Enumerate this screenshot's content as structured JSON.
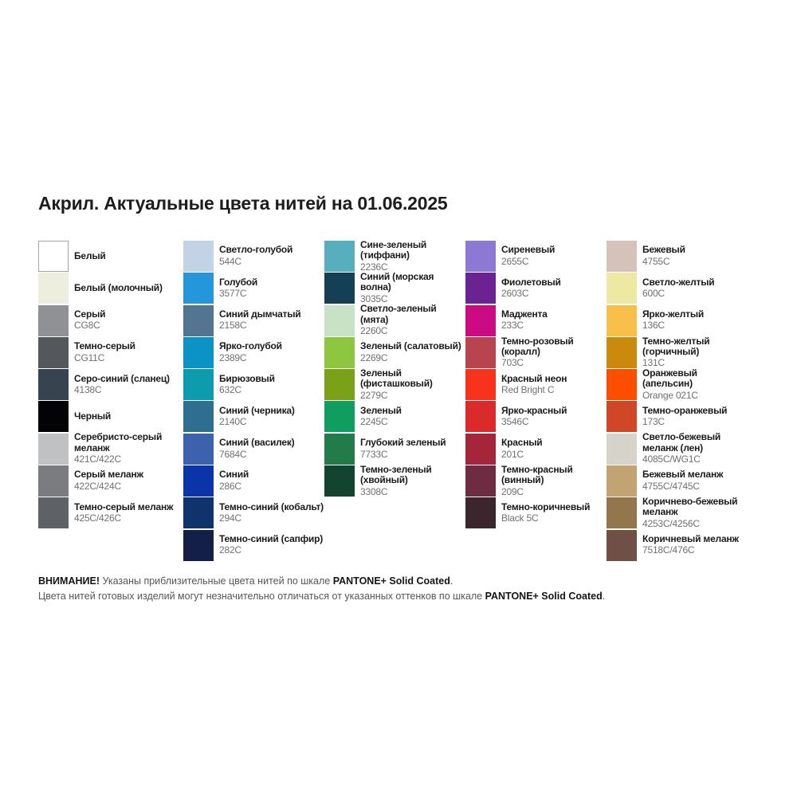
{
  "title": "Акрил. Актуальные цвета нитей на 01.06.2025",
  "columns": [
    {
      "items": [
        {
          "name": "Белый",
          "code": "",
          "hex": "#ffffff",
          "border": true
        },
        {
          "name": "Белый (молочный)",
          "code": "",
          "hex": "#edeedd"
        },
        {
          "name": "Серый",
          "code": "CG8C",
          "hex": "#8f9194"
        },
        {
          "name": "Темно-серый",
          "code": "CG11C",
          "hex": "#54575c"
        },
        {
          "name": "Серо-синий (сланец)",
          "code": "4138C",
          "hex": "#37434f"
        },
        {
          "name": "Черный",
          "code": "",
          "hex": "#030305"
        },
        {
          "name": "Серебристо-серый меланж",
          "code": "421C/422C",
          "hex": "#c0c1c3"
        },
        {
          "name": "Серый меланж",
          "code": "422C/424C",
          "hex": "#7a7c7f"
        },
        {
          "name": "Темно-серый меланж",
          "code": "425C/426C",
          "hex": "#5e6165"
        }
      ]
    },
    {
      "items": [
        {
          "name": "Светло-голубой",
          "code": "544C",
          "hex": "#c3d3e6"
        },
        {
          "name": "Голубой",
          "code": "3577C",
          "hex": "#2496d9"
        },
        {
          "name": "Синий дымчатый",
          "code": "2158C",
          "hex": "#53758f"
        },
        {
          "name": "Ярко-голубой",
          "code": "2389C",
          "hex": "#0b93c6"
        },
        {
          "name": "Бирюзовый",
          "code": "632C",
          "hex": "#0d9bae"
        },
        {
          "name": "Синий (черника)",
          "code": "2140C",
          "hex": "#2e6e8e"
        },
        {
          "name": "Синий (василек)",
          "code": "7684C",
          "hex": "#3c62ae"
        },
        {
          "name": "Синий",
          "code": "286C",
          "hex": "#0b34a9"
        },
        {
          "name": "Темно-синий (кобальт)",
          "code": "294C",
          "hex": "#11336c"
        },
        {
          "name": "Темно-синий (сапфир)",
          "code": "282C",
          "hex": "#141f47"
        }
      ]
    },
    {
      "items": [
        {
          "name": "Сине-зеленый (тиффани)",
          "code": "2236C",
          "hex": "#57afbd"
        },
        {
          "name": "Синий (морская волна)",
          "code": "3035C",
          "hex": "#143f55"
        },
        {
          "name": "Светло-зеленый (мята)",
          "code": "2260C",
          "hex": "#c8e2c6"
        },
        {
          "name": "Зеленый (салатовый)",
          "code": "2269C",
          "hex": "#8ec63f"
        },
        {
          "name": "Зеленый (фисташковый)",
          "code": "2279C",
          "hex": "#7aa118"
        },
        {
          "name": "Зеленый",
          "code": "2245C",
          "hex": "#0f9e5f"
        },
        {
          "name": "Глубокий зеленый",
          "code": "7733C",
          "hex": "#237b4a"
        },
        {
          "name": "Темно-зеленый (хвойный)",
          "code": "3308C",
          "hex": "#134430"
        }
      ]
    },
    {
      "items": [
        {
          "name": "Сиреневый",
          "code": "2655C",
          "hex": "#8d79d3"
        },
        {
          "name": "Фиолетовый",
          "code": "2603C",
          "hex": "#6a2391"
        },
        {
          "name": "Маджента",
          "code": "233C",
          "hex": "#cc0a84"
        },
        {
          "name": "Темно-розовый (коралл)",
          "code": "703C",
          "hex": "#b7444f"
        },
        {
          "name": "Красный неон",
          "code": "Red Bright C",
          "hex": "#f7331e"
        },
        {
          "name": "Ярко-красный",
          "code": "3546C",
          "hex": "#da2a29"
        },
        {
          "name": "Красный",
          "code": "201C",
          "hex": "#a5253a"
        },
        {
          "name": "Темно-красный (винный)",
          "code": "209C",
          "hex": "#6f2b42"
        },
        {
          "name": "Темно-коричневый",
          "code": "Black 5C",
          "hex": "#3c262d"
        }
      ]
    },
    {
      "items": [
        {
          "name": "Бежевый",
          "code": "4755C",
          "hex": "#d5c2ba"
        },
        {
          "name": "Светло-желтый",
          "code": "600C",
          "hex": "#ede8a2"
        },
        {
          "name": "Ярко-желтый",
          "code": "136C",
          "hex": "#f8c04b"
        },
        {
          "name": "Темно-желтый (горчичный)",
          "code": "131C",
          "hex": "#cc8a0d"
        },
        {
          "name": "Оранжевый (апельсин)",
          "code": "Orange 021C",
          "hex": "#fd4e00"
        },
        {
          "name": "Темно-оранжевый",
          "code": "173C",
          "hex": "#cf4727"
        },
        {
          "name": "Светло-бежевый меланж (лен)",
          "code": "4085C/WG1C",
          "hex": "#d6d3cb"
        },
        {
          "name": "Бежевый меланж",
          "code": "4755C/4745C",
          "hex": "#c2a372"
        },
        {
          "name": "Коричнево-бежевый меланж",
          "code": "4253C/4256C",
          "hex": "#94764c"
        },
        {
          "name": "Коричневый меланж",
          "code": "7518C/476C",
          "hex": "#6e5046"
        }
      ]
    }
  ],
  "notice": {
    "line1_bold": "ВНИМАНИЕ!",
    "line1_text": " Указаны приблизительные цвета нитей по шкале ",
    "line1_brand": "PANTONE+ Solid Coated",
    "line1_end": ".",
    "line2_text": "Цвета нитей готовых изделий могут незначительно отличаться от указанных оттенков по шкале ",
    "line2_brand": "PANTONE+ Solid Coated",
    "line2_end": "."
  }
}
